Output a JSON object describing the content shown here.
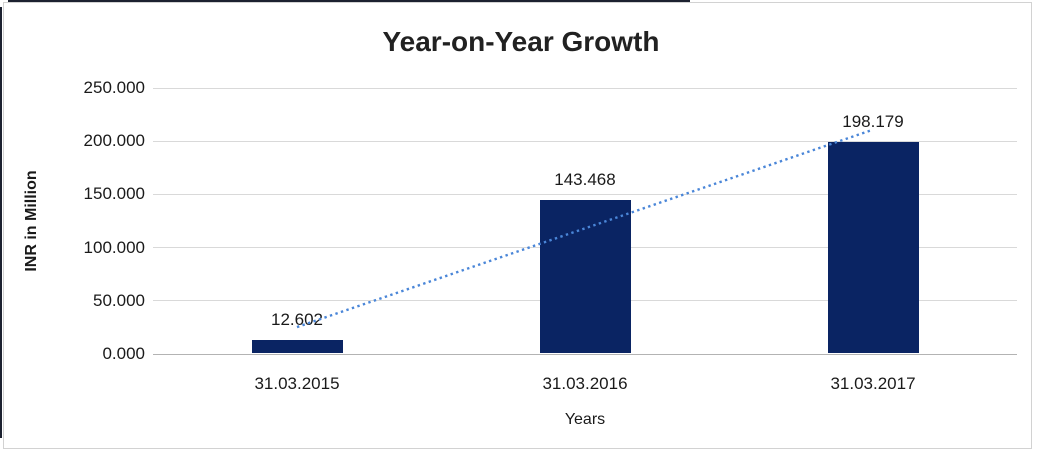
{
  "chart_data": {
    "type": "bar",
    "title": "Year-on-Year Growth",
    "ylabel": "INR in Million",
    "xlabel": "Years",
    "categories": [
      "31.03.2015",
      "31.03.2016",
      "31.03.2017"
    ],
    "values": [
      12.602,
      143.468,
      198.179
    ],
    "value_labels": [
      "12.602",
      "143.468",
      "198.179"
    ],
    "yticks": [
      "250.000",
      "200.000",
      "150.000",
      "100.000",
      "50.000",
      "0.000"
    ],
    "ylim": [
      0,
      250
    ],
    "grid": true,
    "legend_position": "none",
    "bar_color": "#0a2463",
    "trendline": {
      "type": "linear",
      "style": "dotted",
      "color": "#4a86d8"
    },
    "gridline_color": "#d9d9d9",
    "axis_line_color": "#b3b3b3",
    "text_color": "#1a1a1a"
  }
}
